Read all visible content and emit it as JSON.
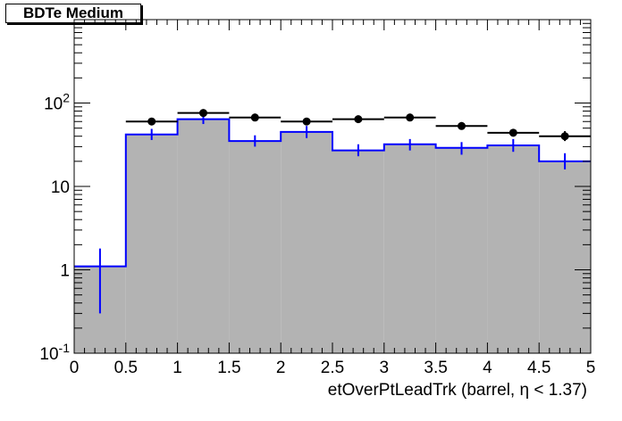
{
  "chart_data": {
    "type": "bar",
    "title": "BDTe Medium",
    "xlabel": "etOverPtLeadTrk (barrel,   η < 1.37)",
    "ylabel": "",
    "xlim": [
      0,
      5
    ],
    "ylim": [
      0.1,
      1000
    ],
    "yscale": "log",
    "grid": false,
    "bin_edges": [
      0,
      0.5,
      1,
      1.5,
      2,
      2.5,
      3,
      3.5,
      4,
      4.5,
      5
    ],
    "x_ticks": [
      "0",
      "0.5",
      "1",
      "1.5",
      "2",
      "2.5",
      "3",
      "3.5",
      "4",
      "4.5",
      "5"
    ],
    "y_ticks": [
      {
        "value": 0.1,
        "label": "10",
        "sup": "-1"
      },
      {
        "value": 1,
        "label": "1",
        "sup": ""
      },
      {
        "value": 10,
        "label": "10",
        "sup": ""
      },
      {
        "value": 100,
        "label": "10",
        "sup": "2"
      }
    ],
    "series": [
      {
        "style": "filled-histogram",
        "fill": "#b3b3b3",
        "line": "#0000ff",
        "values": [
          1.1,
          42,
          64,
          35,
          45,
          27,
          32,
          29,
          31,
          20
        ],
        "errors": [
          [
            0.3,
            1.8
          ],
          [
            36,
            49
          ],
          [
            56,
            72
          ],
          [
            30,
            41
          ],
          [
            38,
            53
          ],
          [
            23,
            32
          ],
          [
            27,
            37
          ],
          [
            24,
            34
          ],
          [
            26,
            37
          ],
          [
            16,
            25
          ]
        ]
      },
      {
        "style": "markers",
        "color": "#000000",
        "values": [
          null,
          60,
          76,
          67,
          60,
          64,
          67,
          53,
          44,
          40
        ],
        "errors": [
          null,
          [
            54,
            66
          ],
          [
            70,
            82
          ],
          [
            62,
            73
          ],
          [
            55,
            66
          ],
          [
            58,
            71
          ],
          [
            62,
            73
          ],
          [
            48,
            59
          ],
          [
            40,
            49
          ],
          [
            35,
            46
          ]
        ]
      }
    ]
  }
}
